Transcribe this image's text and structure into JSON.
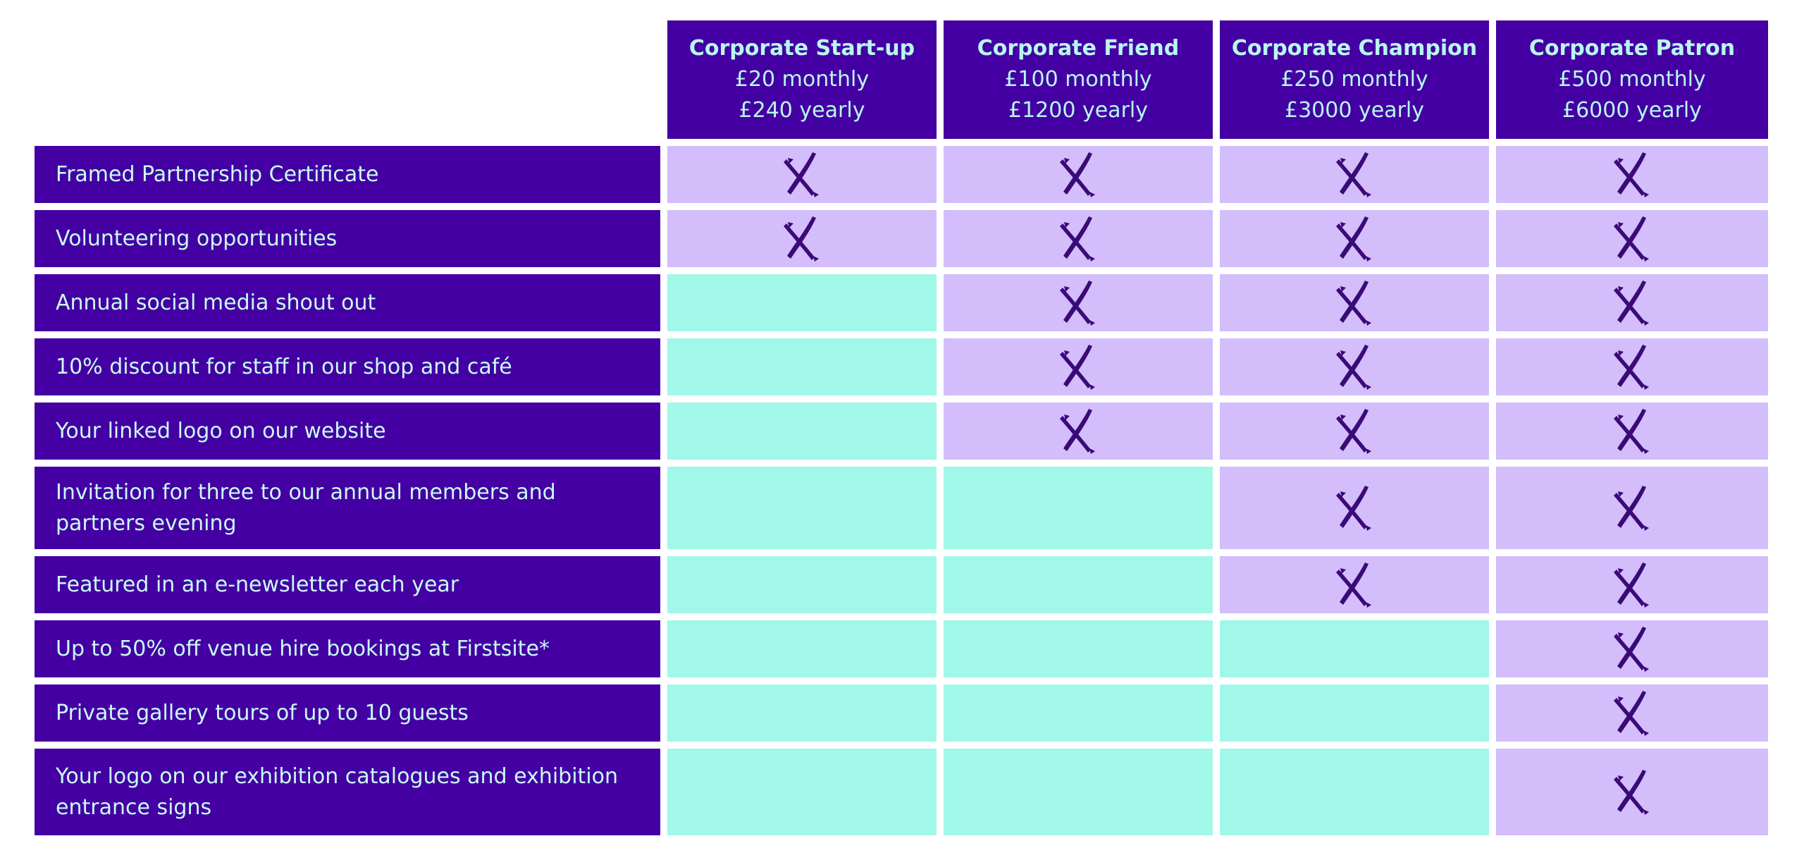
{
  "colors": {
    "header_bg": "#4400a3",
    "header_text": "#b8f7ee",
    "included_bg": "#d3bdfb",
    "not_included_bg": "#a1f7e8",
    "cross": "#3a0a78"
  },
  "tiers": [
    {
      "name": "Corporate Start-up",
      "monthly": "£20 monthly",
      "yearly": "£240 yearly"
    },
    {
      "name": "Corporate Friend",
      "monthly": "£100 monthly",
      "yearly": "£1200 yearly"
    },
    {
      "name": "Corporate Champion",
      "monthly": "£250 monthly",
      "yearly": "£3000 yearly"
    },
    {
      "name": "Corporate Patron",
      "monthly": "£500 monthly",
      "yearly": "£6000 yearly"
    }
  ],
  "features": [
    {
      "label": "Framed Partnership Certificate",
      "included": [
        true,
        true,
        true,
        true
      ]
    },
    {
      "label": "Volunteering opportunities",
      "included": [
        true,
        true,
        true,
        true
      ]
    },
    {
      "label": "Annual social media shout out",
      "included": [
        false,
        true,
        true,
        true
      ]
    },
    {
      "label": "10% discount for staff in our shop and café",
      "included": [
        false,
        true,
        true,
        true
      ]
    },
    {
      "label": "Your linked logo on our website",
      "included": [
        false,
        true,
        true,
        true
      ]
    },
    {
      "label": "Invitation for three to our annual members and partners evening",
      "included": [
        false,
        false,
        true,
        true
      ]
    },
    {
      "label": "Featured in an e-newsletter each year",
      "included": [
        false,
        false,
        true,
        true
      ]
    },
    {
      "label": "Up to 50% off venue hire bookings at Firstsite*",
      "included": [
        false,
        false,
        false,
        true
      ]
    },
    {
      "label": "Private gallery tours of up to 10 guests",
      "included": [
        false,
        false,
        false,
        true
      ]
    },
    {
      "label": "Your logo on our exhibition catalogues and exhibition entrance signs",
      "included": [
        false,
        false,
        false,
        true
      ]
    }
  ],
  "included_icon": "cross-mark-icon"
}
